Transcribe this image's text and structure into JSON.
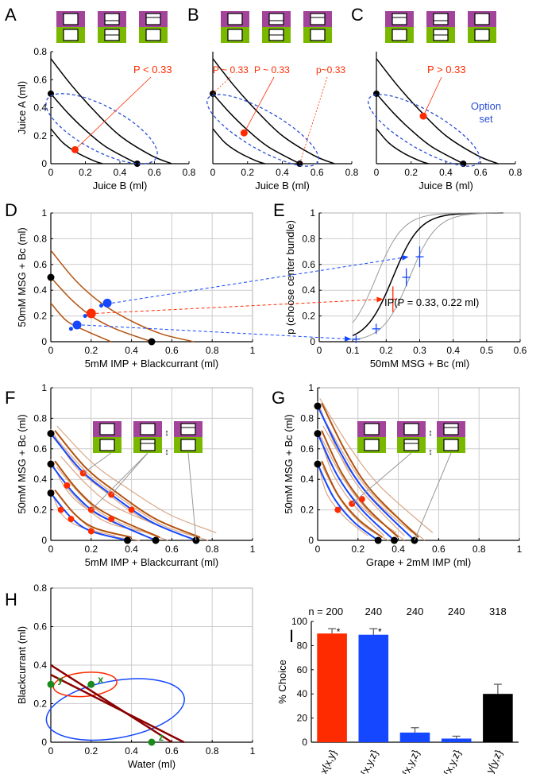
{
  "colors": {
    "red": "#ff2b00",
    "blue": "#1447ff",
    "brown": "#b3520f",
    "darkred": "#8b0000",
    "green": "#1a8a1a",
    "gray": "#999999",
    "grid": "#cccccc",
    "dashblue": "#2a4fd6",
    "purple": "#a3449b",
    "lime": "#7ab800"
  },
  "panel_letters": [
    "A",
    "B",
    "C",
    "D",
    "E",
    "F",
    "G",
    "H",
    "I"
  ],
  "chart_data": [
    {
      "panel": "A",
      "type": "line",
      "xlabel": "Juice B (ml)",
      "ylabel": "Juice A (ml)",
      "xlim": [
        0,
        0.8
      ],
      "ylim": [
        0,
        0.8
      ],
      "xticks": [
        "0",
        "0.2",
        "0.4",
        "0.6",
        "0.8"
      ],
      "yticks": [
        "0",
        "0.2",
        "0.4",
        "0.6",
        "0.8"
      ],
      "series": [
        {
          "values": [
            [
              0,
              0.25
            ],
            [
              0.07,
              0.15
            ],
            [
              0.15,
              0.08
            ],
            [
              0.25,
              0.02
            ],
            [
              0.3,
              0
            ]
          ]
        },
        {
          "values": [
            [
              0,
              0.5
            ],
            [
              0.1,
              0.36
            ],
            [
              0.2,
              0.24
            ],
            [
              0.32,
              0.12
            ],
            [
              0.5,
              0
            ]
          ]
        },
        {
          "values": [
            [
              0,
              0.75
            ],
            [
              0.12,
              0.56
            ],
            [
              0.25,
              0.38
            ],
            [
              0.4,
              0.2
            ],
            [
              0.58,
              0.06
            ],
            [
              0.7,
              0
            ]
          ]
        }
      ],
      "points": [
        {
          "x": 0,
          "y": 0.5
        },
        {
          "x": 0.5,
          "y": 0
        },
        {
          "x": 0.14,
          "y": 0.1,
          "kind": "red"
        }
      ],
      "annotations": [
        "P < 0.33"
      ]
    },
    {
      "panel": "B",
      "type": "line",
      "xlabel": "Juice B (ml)",
      "xlim": [
        0,
        0.8
      ],
      "ylim": [
        0,
        0.8
      ],
      "xticks": [
        "0",
        "0.2",
        "0.4",
        "0.6",
        "0.8"
      ],
      "series": [
        {
          "values": [
            [
              0,
              0.25
            ],
            [
              0.07,
              0.15
            ],
            [
              0.15,
              0.08
            ],
            [
              0.25,
              0.02
            ],
            [
              0.3,
              0
            ]
          ]
        },
        {
          "values": [
            [
              0,
              0.5
            ],
            [
              0.1,
              0.36
            ],
            [
              0.2,
              0.24
            ],
            [
              0.32,
              0.12
            ],
            [
              0.5,
              0
            ]
          ]
        },
        {
          "values": [
            [
              0,
              0.75
            ],
            [
              0.12,
              0.56
            ],
            [
              0.25,
              0.38
            ],
            [
              0.4,
              0.2
            ],
            [
              0.58,
              0.06
            ],
            [
              0.7,
              0
            ]
          ]
        }
      ],
      "points": [
        {
          "x": 0,
          "y": 0.5
        },
        {
          "x": 0.5,
          "y": 0
        },
        {
          "x": 0.18,
          "y": 0.22,
          "kind": "red"
        }
      ],
      "annotations": [
        "P ~ 0.33",
        "P ~ 0.33",
        "p~0.33"
      ]
    },
    {
      "panel": "C",
      "type": "line",
      "xlabel": "Juice B (ml)",
      "xlim": [
        0,
        0.8
      ],
      "ylim": [
        0,
        0.8
      ],
      "xticks": [
        "0",
        "0.2",
        "0.4",
        "0.6",
        "0.8"
      ],
      "series": [
        {
          "values": [
            [
              0,
              0.25
            ],
            [
              0.07,
              0.15
            ],
            [
              0.15,
              0.08
            ],
            [
              0.25,
              0.02
            ],
            [
              0.3,
              0
            ]
          ]
        },
        {
          "values": [
            [
              0,
              0.5
            ],
            [
              0.1,
              0.36
            ],
            [
              0.2,
              0.24
            ],
            [
              0.32,
              0.12
            ],
            [
              0.5,
              0
            ]
          ]
        },
        {
          "values": [
            [
              0,
              0.75
            ],
            [
              0.12,
              0.56
            ],
            [
              0.25,
              0.38
            ],
            [
              0.4,
              0.2
            ],
            [
              0.58,
              0.06
            ],
            [
              0.7,
              0
            ]
          ]
        }
      ],
      "points": [
        {
          "x": 0,
          "y": 0.5
        },
        {
          "x": 0.5,
          "y": 0
        },
        {
          "x": 0.27,
          "y": 0.34,
          "kind": "red"
        }
      ],
      "annotations": [
        "P > 0.33",
        "Option",
        "set"
      ]
    },
    {
      "panel": "D",
      "type": "line",
      "xlabel": "5mM IMP + Blackcurrant (ml)",
      "ylabel": "50mM MSG + Bc (ml)",
      "xlim": [
        0,
        1
      ],
      "ylim": [
        0,
        1
      ],
      "xticks": [
        "0",
        "0.2",
        "0.4",
        "0.6",
        "0.8",
        "1"
      ],
      "yticks": [
        "0",
        "0.2",
        "0.4",
        "0.6",
        "0.8",
        "1"
      ],
      "series": [
        {
          "values": [
            [
              0,
              0.3
            ],
            [
              0.08,
              0.16
            ],
            [
              0.18,
              0.08
            ],
            [
              0.3,
              0
            ]
          ]
        },
        {
          "values": [
            [
              0,
              0.5
            ],
            [
              0.1,
              0.33
            ],
            [
              0.2,
              0.2
            ],
            [
              0.32,
              0.1
            ],
            [
              0.5,
              0
            ]
          ]
        },
        {
          "values": [
            [
              0,
              0.71
            ],
            [
              0.12,
              0.48
            ],
            [
              0.25,
              0.3
            ],
            [
              0.4,
              0.16
            ],
            [
              0.55,
              0.06
            ],
            [
              0.71,
              0
            ]
          ]
        }
      ],
      "points": [
        {
          "x": 0,
          "y": 0.5
        },
        {
          "x": 0.5,
          "y": 0
        },
        {
          "x": 0.2,
          "y": 0.22,
          "kind": "red"
        },
        {
          "x": 0.28,
          "y": 0.3,
          "kind": "blue"
        },
        {
          "x": 0.13,
          "y": 0.13,
          "kind": "blue"
        }
      ]
    },
    {
      "panel": "E",
      "type": "line",
      "xlabel": "50mM MSG + Bc (ml)",
      "ylabel": "p (choose center bundle)",
      "xlim": [
        0,
        0.6
      ],
      "ylim": [
        0,
        1
      ],
      "xticks": [
        "0",
        "0.1",
        "0.2",
        "0.3",
        "0.4",
        "0.5",
        "0.6"
      ],
      "yticks": [
        "0",
        "0.2",
        "0.4",
        "0.6",
        "0.8",
        "1"
      ],
      "fit": {
        "midpoint": 0.22,
        "slope": 25
      },
      "points": [
        {
          "x": 0.11,
          "y": 0.02,
          "err": 0.03,
          "kind": "blue"
        },
        {
          "x": 0.17,
          "y": 0.1,
          "err": 0.04,
          "kind": "blue"
        },
        {
          "x": 0.22,
          "y": 0.33,
          "err": 0.1,
          "kind": "red"
        },
        {
          "x": 0.26,
          "y": 0.5,
          "err": 0.07,
          "kind": "blue"
        },
        {
          "x": 0.3,
          "y": 0.66,
          "err": 0.08,
          "kind": "blue"
        }
      ],
      "annotations": [
        "IP(P = 0.33, 0.22 ml)"
      ]
    },
    {
      "panel": "F",
      "type": "line",
      "xlabel": "5mM IMP + Blackcurrant (ml)",
      "ylabel": "50mM MSG + Bc (ml)",
      "xlim": [
        0,
        1
      ],
      "ylim": [
        0,
        1
      ],
      "xticks": [
        "0",
        "0.2",
        "0.4",
        "0.6",
        "0.8",
        "1"
      ],
      "yticks": [
        "0",
        "0.2",
        "0.4",
        "0.6",
        "0.8",
        "1"
      ],
      "series": [
        {
          "values": [
            [
              0,
              0.31
            ],
            [
              0.1,
              0.15
            ],
            [
              0.2,
              0.06
            ],
            [
              0.38,
              0
            ]
          ]
        },
        {
          "values": [
            [
              0,
              0.5
            ],
            [
              0.12,
              0.3
            ],
            [
              0.25,
              0.16
            ],
            [
              0.52,
              0
            ]
          ]
        },
        {
          "values": [
            [
              0,
              0.7
            ],
            [
              0.15,
              0.46
            ],
            [
              0.3,
              0.3
            ],
            [
              0.5,
              0.12
            ],
            [
              0.72,
              0
            ]
          ]
        }
      ],
      "points": [
        {
          "x": 0,
          "y": 0.31
        },
        {
          "x": 0,
          "y": 0.5
        },
        {
          "x": 0,
          "y": 0.7
        },
        {
          "x": 0.38,
          "y": 0
        },
        {
          "x": 0.52,
          "y": 0
        },
        {
          "x": 0.72,
          "y": 0
        },
        {
          "x": 0.05,
          "y": 0.2,
          "kind": "red"
        },
        {
          "x": 0.1,
          "y": 0.14,
          "kind": "red"
        },
        {
          "x": 0.2,
          "y": 0.06,
          "kind": "red"
        },
        {
          "x": 0.08,
          "y": 0.36,
          "kind": "red"
        },
        {
          "x": 0.2,
          "y": 0.2,
          "kind": "red"
        },
        {
          "x": 0.3,
          "y": 0.14,
          "kind": "red"
        },
        {
          "x": 0.16,
          "y": 0.44,
          "kind": "red"
        },
        {
          "x": 0.3,
          "y": 0.3,
          "kind": "red"
        },
        {
          "x": 0.4,
          "y": 0.2,
          "kind": "red"
        }
      ]
    },
    {
      "panel": "G",
      "type": "line",
      "xlabel": "Grape + 2mM IMP (ml)",
      "ylabel": "50mM MSG + Bc (ml)",
      "xlim": [
        0,
        1
      ],
      "ylim": [
        0,
        1
      ],
      "xticks": [
        "0",
        "0.2",
        "0.4",
        "0.6",
        "0.8",
        "1"
      ],
      "yticks": [
        "0",
        "0.2",
        "0.4",
        "0.6",
        "0.8",
        "1"
      ],
      "series": [
        {
          "values": [
            [
              0,
              0.5
            ],
            [
              0.08,
              0.28
            ],
            [
              0.18,
              0.12
            ],
            [
              0.3,
              0
            ]
          ]
        },
        {
          "values": [
            [
              0,
              0.7
            ],
            [
              0.1,
              0.42
            ],
            [
              0.22,
              0.2
            ],
            [
              0.38,
              0
            ]
          ]
        },
        {
          "values": [
            [
              0,
              0.88
            ],
            [
              0.12,
              0.56
            ],
            [
              0.25,
              0.3
            ],
            [
              0.48,
              0
            ]
          ]
        }
      ],
      "points": [
        {
          "x": 0,
          "y": 0.5
        },
        {
          "x": 0,
          "y": 0.7
        },
        {
          "x": 0,
          "y": 0.88
        },
        {
          "x": 0.3,
          "y": 0
        },
        {
          "x": 0.38,
          "y": 0
        },
        {
          "x": 0.48,
          "y": 0
        },
        {
          "x": 0.1,
          "y": 0.2,
          "kind": "red"
        },
        {
          "x": 0.17,
          "y": 0.24,
          "kind": "red"
        },
        {
          "x": 0.22,
          "y": 0.27,
          "kind": "red"
        }
      ]
    },
    {
      "panel": "H",
      "type": "line",
      "xlabel": "Water (ml)",
      "ylabel": "Blackcurrant (ml)",
      "xlim": [
        0,
        1
      ],
      "ylim": [
        0,
        0.8
      ],
      "xticks": [
        "0",
        "0.2",
        "0.4",
        "0.6",
        "0.8",
        "1"
      ],
      "yticks": [
        "0",
        "0.2",
        "0.4",
        "0.6",
        "0.8"
      ],
      "series": [
        {
          "values": [
            [
              0,
              0.4
            ],
            [
              0.6,
              0
            ]
          ]
        },
        {
          "values": [
            [
              0,
              0.35
            ],
            [
              0.66,
              0
            ]
          ]
        }
      ],
      "points": [
        {
          "x": 0,
          "y": 0.3,
          "label": "y"
        },
        {
          "x": 0.2,
          "y": 0.3,
          "label": "x"
        },
        {
          "x": 0.5,
          "y": 0,
          "label": "z"
        }
      ]
    },
    {
      "panel": "I",
      "type": "bar",
      "ylabel": "% Choice",
      "ylim": [
        0,
        100
      ],
      "yticks": [
        "0",
        "20",
        "40",
        "60",
        "80",
        "100"
      ],
      "categories": [
        "x{x,y}",
        "x{x,y,z}",
        "y{x,y,z}",
        "z{x,y,z}",
        "y{y,z}"
      ],
      "n_labels": [
        "n = 200",
        "240",
        "240",
        "240",
        "318"
      ],
      "values": [
        90,
        89,
        8,
        3,
        40
      ],
      "errors": [
        4,
        5,
        4,
        2,
        8
      ],
      "significance": [
        "*",
        "*",
        "",
        "",
        ""
      ]
    }
  ]
}
